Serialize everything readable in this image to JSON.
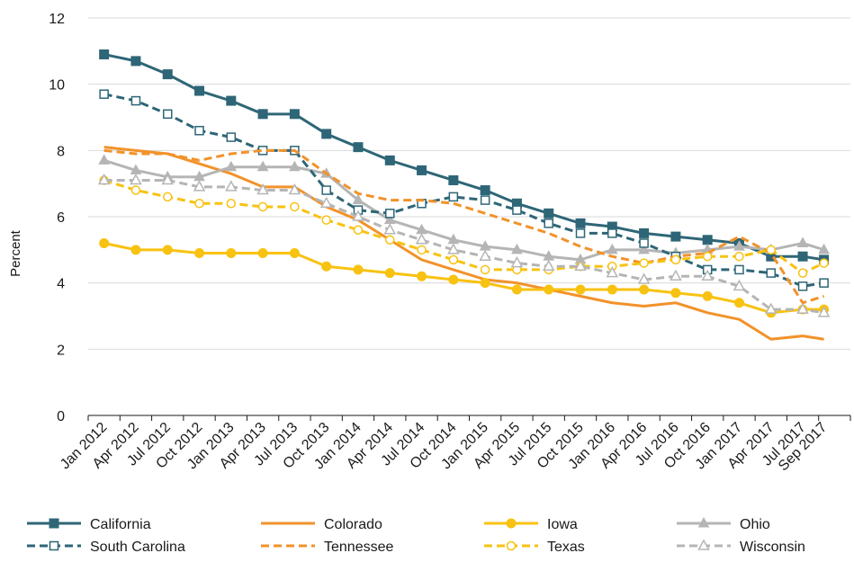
{
  "chart_data": {
    "type": "line",
    "title": "",
    "xlabel": "",
    "ylabel": "Percent",
    "ylim": [
      0,
      12
    ],
    "yticks": [
      "0",
      "2",
      "4",
      "6",
      "8",
      "10",
      "12"
    ],
    "grid": "horizontal",
    "legend_position": "bottom",
    "tick_labels": [
      "Jan 2012",
      "Apr 2012",
      "Jul 2012",
      "Oct 2012",
      "Jan 2013",
      "Apr 2013",
      "Jul 2013",
      "Oct 2013",
      "Jan 2014",
      "Apr 2014",
      "Jul 2014",
      "Oct 2014",
      "Jan 2015",
      "Apr 2015",
      "Jul 2015",
      "Oct 2015",
      "Jan 2016",
      "Apr 2016",
      "Jul 2016",
      "Oct 2016",
      "Jan 2017",
      "Apr 2017",
      "Jul 2017",
      "Sep 2017"
    ],
    "tick_dates": [
      "2012-01",
      "2012-04",
      "2012-07",
      "2012-10",
      "2013-01",
      "2013-04",
      "2013-07",
      "2013-10",
      "2014-01",
      "2014-04",
      "2014-07",
      "2014-10",
      "2015-01",
      "2015-04",
      "2015-07",
      "2015-10",
      "2016-01",
      "2016-04",
      "2016-07",
      "2016-10",
      "2017-01",
      "2017-04",
      "2017-07",
      "2017-09"
    ],
    "series": [
      {
        "name": "California",
        "color": "#2e6677",
        "style": "solid",
        "marker": "square-filled",
        "x": [
          "2012-01",
          "2012-04",
          "2012-07",
          "2012-10",
          "2013-01",
          "2013-04",
          "2013-07",
          "2013-10",
          "2014-01",
          "2014-04",
          "2014-07",
          "2014-10",
          "2015-01",
          "2015-04",
          "2015-07",
          "2015-10",
          "2016-01",
          "2016-04",
          "2016-07",
          "2016-10",
          "2017-01",
          "2017-04",
          "2017-07",
          "2017-09"
        ],
        "values": [
          10.9,
          10.7,
          10.3,
          9.8,
          9.5,
          9.1,
          9.1,
          8.5,
          8.1,
          7.7,
          7.4,
          7.1,
          6.8,
          6.4,
          6.1,
          5.8,
          5.7,
          5.5,
          5.4,
          5.3,
          5.2,
          4.8,
          4.8,
          4.7
        ]
      },
      {
        "name": "Colorado",
        "color": "#f2922a",
        "style": "solid",
        "marker": "none",
        "x": [
          "2012-01",
          "2012-04",
          "2012-07",
          "2012-10",
          "2013-01",
          "2013-04",
          "2013-07",
          "2013-10",
          "2014-01",
          "2014-04",
          "2014-07",
          "2014-10",
          "2015-01",
          "2015-04",
          "2015-07",
          "2015-10",
          "2016-01",
          "2016-04",
          "2016-07",
          "2016-10",
          "2017-01",
          "2017-04",
          "2017-07",
          "2017-09"
        ],
        "values": [
          8.1,
          8.0,
          7.9,
          7.6,
          7.3,
          6.9,
          6.9,
          6.3,
          5.9,
          5.3,
          4.7,
          4.4,
          4.1,
          4.0,
          3.8,
          3.6,
          3.4,
          3.3,
          3.4,
          3.1,
          2.9,
          2.3,
          2.4,
          2.3
        ]
      },
      {
        "name": "Iowa",
        "color": "#f8c212",
        "style": "solid",
        "marker": "circle-filled",
        "x": [
          "2012-01",
          "2012-04",
          "2012-07",
          "2012-10",
          "2013-01",
          "2013-04",
          "2013-07",
          "2013-10",
          "2014-01",
          "2014-04",
          "2014-07",
          "2014-10",
          "2015-01",
          "2015-04",
          "2015-07",
          "2015-10",
          "2016-01",
          "2016-04",
          "2016-07",
          "2016-10",
          "2017-01",
          "2017-04",
          "2017-07",
          "2017-09"
        ],
        "values": [
          5.2,
          5.0,
          5.0,
          4.9,
          4.9,
          4.9,
          4.9,
          4.5,
          4.4,
          4.3,
          4.2,
          4.1,
          4.0,
          3.8,
          3.8,
          3.8,
          3.8,
          3.8,
          3.7,
          3.6,
          3.4,
          3.1,
          3.2,
          3.2
        ]
      },
      {
        "name": "Ohio",
        "color": "#b5b5b5",
        "style": "solid",
        "marker": "triangle-filled",
        "x": [
          "2012-01",
          "2012-04",
          "2012-07",
          "2012-10",
          "2013-01",
          "2013-04",
          "2013-07",
          "2013-10",
          "2014-01",
          "2014-04",
          "2014-07",
          "2014-10",
          "2015-01",
          "2015-04",
          "2015-07",
          "2015-10",
          "2016-01",
          "2016-04",
          "2016-07",
          "2016-10",
          "2017-01",
          "2017-04",
          "2017-07",
          "2017-09"
        ],
        "values": [
          7.7,
          7.4,
          7.2,
          7.2,
          7.5,
          7.5,
          7.5,
          7.3,
          6.5,
          5.9,
          5.6,
          5.3,
          5.1,
          5.0,
          4.8,
          4.7,
          5.0,
          5.0,
          4.9,
          5.0,
          5.1,
          5.0,
          5.2,
          5.0
        ]
      },
      {
        "name": "South Carolina",
        "color": "#2e6677",
        "style": "dashed",
        "marker": "square-open",
        "x": [
          "2012-01",
          "2012-04",
          "2012-07",
          "2012-10",
          "2013-01",
          "2013-04",
          "2013-07",
          "2013-10",
          "2014-01",
          "2014-04",
          "2014-07",
          "2014-10",
          "2015-01",
          "2015-04",
          "2015-07",
          "2015-10",
          "2016-01",
          "2016-04",
          "2016-07",
          "2016-10",
          "2017-01",
          "2017-04",
          "2017-07",
          "2017-09"
        ],
        "values": [
          9.7,
          9.5,
          9.1,
          8.6,
          8.4,
          8.0,
          8.0,
          6.8,
          6.2,
          6.1,
          6.4,
          6.6,
          6.5,
          6.2,
          5.8,
          5.5,
          5.5,
          5.2,
          4.8,
          4.4,
          4.4,
          4.3,
          3.9,
          4.0
        ]
      },
      {
        "name": "Tennessee",
        "color": "#f2922a",
        "style": "dashed",
        "marker": "none",
        "x": [
          "2012-01",
          "2012-04",
          "2012-07",
          "2012-10",
          "2013-01",
          "2013-04",
          "2013-07",
          "2013-10",
          "2014-01",
          "2014-04",
          "2014-07",
          "2014-10",
          "2015-01",
          "2015-04",
          "2015-07",
          "2015-10",
          "2016-01",
          "2016-04",
          "2016-07",
          "2016-10",
          "2017-01",
          "2017-04",
          "2017-07",
          "2017-09"
        ],
        "values": [
          8.0,
          7.9,
          7.9,
          7.7,
          7.9,
          8.0,
          8.0,
          7.3,
          6.7,
          6.5,
          6.5,
          6.4,
          6.1,
          5.8,
          5.5,
          5.1,
          4.8,
          4.6,
          4.8,
          4.9,
          5.4,
          4.9,
          3.4,
          3.6
        ]
      },
      {
        "name": "Texas",
        "color": "#f8c212",
        "style": "dashed",
        "marker": "circle-open",
        "x": [
          "2012-01",
          "2012-04",
          "2012-07",
          "2012-10",
          "2013-01",
          "2013-04",
          "2013-07",
          "2013-10",
          "2014-01",
          "2014-04",
          "2014-07",
          "2014-10",
          "2015-01",
          "2015-04",
          "2015-07",
          "2015-10",
          "2016-01",
          "2016-04",
          "2016-07",
          "2016-10",
          "2017-01",
          "2017-04",
          "2017-07",
          "2017-09"
        ],
        "values": [
          7.1,
          6.8,
          6.6,
          6.4,
          6.4,
          6.3,
          6.3,
          5.9,
          5.6,
          5.3,
          5.0,
          4.7,
          4.4,
          4.4,
          4.4,
          4.5,
          4.5,
          4.6,
          4.7,
          4.8,
          4.8,
          5.0,
          4.3,
          4.6
        ]
      },
      {
        "name": "Wisconsin",
        "color": "#b5b5b5",
        "style": "dashed",
        "marker": "triangle-open",
        "x": [
          "2012-01",
          "2012-04",
          "2012-07",
          "2012-10",
          "2013-01",
          "2013-04",
          "2013-07",
          "2013-10",
          "2014-01",
          "2014-04",
          "2014-07",
          "2014-10",
          "2015-01",
          "2015-04",
          "2015-07",
          "2015-10",
          "2016-01",
          "2016-04",
          "2016-07",
          "2016-10",
          "2017-01",
          "2017-04",
          "2017-07",
          "2017-09"
        ],
        "values": [
          7.1,
          7.1,
          7.1,
          6.9,
          6.9,
          6.8,
          6.8,
          6.4,
          6.0,
          5.6,
          5.3,
          5.0,
          4.8,
          4.6,
          4.5,
          4.5,
          4.3,
          4.1,
          4.2,
          4.2,
          3.9,
          3.2,
          3.2,
          3.1
        ]
      }
    ]
  }
}
